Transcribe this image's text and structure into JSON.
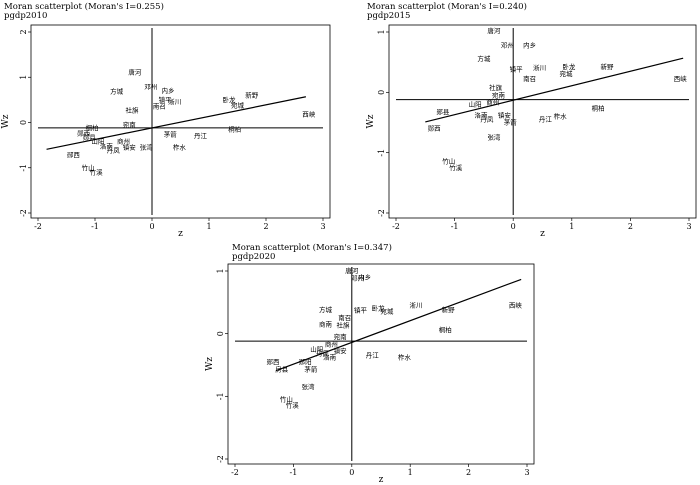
{
  "chart_data": [
    {
      "type": "scatter",
      "title": "Moran scatterplot (Moran's I=0.255)",
      "subtitle": "pgdp2010",
      "xlabel": "z",
      "ylabel": "Wz",
      "xlim": [
        -2,
        3
      ],
      "ylim": [
        -2,
        2
      ],
      "xticks": [
        "-2",
        "-1",
        "0",
        "1",
        "2",
        "3"
      ],
      "yticks": [
        "-2",
        "-1",
        "0",
        "1",
        "2"
      ],
      "reference": {
        "x": 0,
        "y": -0.12
      },
      "regression": {
        "slope": 0.255,
        "intercept": -0.12,
        "x_range": [
          -1.85,
          2.7
        ]
      },
      "points": [
        {
          "label": "唐河",
          "x": -0.3,
          "y": 1.1
        },
        {
          "label": "方城",
          "x": -0.62,
          "y": 0.68
        },
        {
          "label": "邓州",
          "x": -0.02,
          "y": 0.78
        },
        {
          "label": "内乡",
          "x": 0.28,
          "y": 0.7
        },
        {
          "label": "镇平",
          "x": 0.23,
          "y": 0.5
        },
        {
          "label": "淅川",
          "x": 0.4,
          "y": 0.45
        },
        {
          "label": "南召",
          "x": 0.13,
          "y": 0.35
        },
        {
          "label": "社旗",
          "x": -0.35,
          "y": 0.27
        },
        {
          "label": "新野",
          "x": 1.75,
          "y": 0.6
        },
        {
          "label": "卧龙",
          "x": 1.35,
          "y": 0.5
        },
        {
          "label": "宛城",
          "x": 1.5,
          "y": 0.38
        },
        {
          "label": "西峡",
          "x": 2.75,
          "y": 0.18
        },
        {
          "label": "桐柏",
          "x": 1.45,
          "y": -0.15
        },
        {
          "label": "丹江",
          "x": 0.85,
          "y": -0.3
        },
        {
          "label": "宛南",
          "x": -0.4,
          "y": -0.05
        },
        {
          "label": "桐柏",
          "x": -1.05,
          "y": -0.12
        },
        {
          "label": "茅箭",
          "x": 0.32,
          "y": -0.27
        },
        {
          "label": "郧西",
          "x": -1.2,
          "y": -0.24
        },
        {
          "label": "郧县",
          "x": -1.1,
          "y": -0.33
        },
        {
          "label": "山阳",
          "x": -0.95,
          "y": -0.42
        },
        {
          "label": "商州",
          "x": -0.5,
          "y": -0.42
        },
        {
          "label": "洛南",
          "x": -0.8,
          "y": -0.53
        },
        {
          "label": "丹凤",
          "x": -0.68,
          "y": -0.62
        },
        {
          "label": "镇安",
          "x": -0.4,
          "y": -0.55
        },
        {
          "label": "张湾",
          "x": -0.1,
          "y": -0.55
        },
        {
          "label": "柞水",
          "x": 0.48,
          "y": -0.55
        },
        {
          "label": "郧西",
          "x": -1.38,
          "y": -0.72
        },
        {
          "label": "竹山",
          "x": -1.12,
          "y": -1.0
        },
        {
          "label": "竹溪",
          "x": -0.98,
          "y": -1.1
        }
      ]
    },
    {
      "type": "scatter",
      "title": "Moran scatterplot (Moran's I=0.240)",
      "subtitle": "pgdp2015",
      "xlabel": "z",
      "ylabel": "Wz",
      "xlim": [
        -2,
        3
      ],
      "ylim": [
        -2,
        1
      ],
      "xticks": [
        "-2",
        "-1",
        "0",
        "1",
        "2",
        "3"
      ],
      "yticks": [
        "-2",
        "-1",
        "0",
        "1"
      ],
      "reference": {
        "x": 0,
        "y": -0.12
      },
      "regression": {
        "slope": 0.24,
        "intercept": -0.13,
        "x_range": [
          -1.5,
          2.9
        ]
      },
      "points": [
        {
          "label": "唐河",
          "x": -0.33,
          "y": 1.02
        },
        {
          "label": "邓州",
          "x": -0.1,
          "y": 0.78
        },
        {
          "label": "内乡",
          "x": 0.28,
          "y": 0.78
        },
        {
          "label": "方城",
          "x": -0.5,
          "y": 0.55
        },
        {
          "label": "镇平",
          "x": 0.05,
          "y": 0.38
        },
        {
          "label": "淅川",
          "x": 0.45,
          "y": 0.4
        },
        {
          "label": "卧龙",
          "x": 0.95,
          "y": 0.42
        },
        {
          "label": "宛城",
          "x": 0.9,
          "y": 0.3
        },
        {
          "label": "新野",
          "x": 1.6,
          "y": 0.42
        },
        {
          "label": "西峡",
          "x": 2.85,
          "y": 0.22
        },
        {
          "label": "南召",
          "x": 0.28,
          "y": 0.22
        },
        {
          "label": "社旗",
          "x": -0.3,
          "y": 0.07
        },
        {
          "label": "宛南",
          "x": -0.25,
          "y": -0.05
        },
        {
          "label": "山阳",
          "x": -0.65,
          "y": -0.2
        },
        {
          "label": "商州",
          "x": -0.35,
          "y": -0.17
        },
        {
          "label": "桐柏",
          "x": 1.45,
          "y": -0.27
        },
        {
          "label": "郧县",
          "x": -1.2,
          "y": -0.33
        },
        {
          "label": "洛南",
          "x": -0.55,
          "y": -0.38
        },
        {
          "label": "丹凤",
          "x": -0.45,
          "y": -0.45
        },
        {
          "label": "镇安",
          "x": -0.15,
          "y": -0.38
        },
        {
          "label": "茅箭",
          "x": -0.05,
          "y": -0.5
        },
        {
          "label": "丹江",
          "x": 0.55,
          "y": -0.45
        },
        {
          "label": "柞水",
          "x": 0.8,
          "y": -0.4
        },
        {
          "label": "郧西",
          "x": -1.35,
          "y": -0.6
        },
        {
          "label": "张湾",
          "x": -0.33,
          "y": -0.75
        },
        {
          "label": "竹山",
          "x": -1.1,
          "y": -1.15
        },
        {
          "label": "竹溪",
          "x": -0.98,
          "y": -1.25
        }
      ]
    },
    {
      "type": "scatter",
      "title": "Moran scatterplot (Moran's I=0.347)",
      "subtitle": "pgdp2020",
      "xlabel": "z",
      "ylabel": "Wz",
      "xlim": [
        -2,
        3
      ],
      "ylim": [
        -2,
        1
      ],
      "xticks": [
        "-2",
        "-1",
        "0",
        "1",
        "2",
        "3"
      ],
      "yticks": [
        "-2",
        "-1",
        "0",
        "1"
      ],
      "reference": {
        "x": 0,
        "y": -0.12
      },
      "regression": {
        "slope": 0.347,
        "intercept": -0.14,
        "x_range": [
          -1.3,
          2.9
        ]
      },
      "points": [
        {
          "label": "唐河",
          "x": 0.0,
          "y": 1.0
        },
        {
          "label": "内乡",
          "x": 0.22,
          "y": 0.9
        },
        {
          "label": "邓州",
          "x": 0.1,
          "y": 0.88
        },
        {
          "label": "方城",
          "x": -0.45,
          "y": 0.38
        },
        {
          "label": "镇平",
          "x": 0.15,
          "y": 0.37
        },
        {
          "label": "卧龙",
          "x": 0.45,
          "y": 0.4
        },
        {
          "label": "宛城",
          "x": 0.6,
          "y": 0.35
        },
        {
          "label": "淅川",
          "x": 1.1,
          "y": 0.45
        },
        {
          "label": "新野",
          "x": 1.65,
          "y": 0.38
        },
        {
          "label": "西峡",
          "x": 2.8,
          "y": 0.45
        },
        {
          "label": "南召",
          "x": -0.12,
          "y": 0.25
        },
        {
          "label": "商南",
          "x": -0.45,
          "y": 0.15
        },
        {
          "label": "社旗",
          "x": -0.15,
          "y": 0.13
        },
        {
          "label": "桐柏",
          "x": 1.6,
          "y": 0.06
        },
        {
          "label": "宛南",
          "x": -0.2,
          "y": -0.05
        },
        {
          "label": "山阳",
          "x": -0.6,
          "y": -0.25
        },
        {
          "label": "商州",
          "x": -0.35,
          "y": -0.17
        },
        {
          "label": "镇安",
          "x": -0.2,
          "y": -0.28
        },
        {
          "label": "丹凤",
          "x": -0.5,
          "y": -0.32
        },
        {
          "label": "洛南",
          "x": -0.38,
          "y": -0.38
        },
        {
          "label": "丹江",
          "x": 0.35,
          "y": -0.35
        },
        {
          "label": "柞水",
          "x": 0.9,
          "y": -0.38
        },
        {
          "label": "郧西",
          "x": -1.35,
          "y": -0.45
        },
        {
          "label": "郧阳",
          "x": -0.8,
          "y": -0.45
        },
        {
          "label": "茅箭",
          "x": -0.7,
          "y": -0.57
        },
        {
          "label": "房县",
          "x": -1.2,
          "y": -0.57
        },
        {
          "label": "张湾",
          "x": -0.75,
          "y": -0.85
        },
        {
          "label": "竹山",
          "x": -1.12,
          "y": -1.05
        },
        {
          "label": "竹溪",
          "x": -1.02,
          "y": -1.15
        }
      ]
    }
  ]
}
